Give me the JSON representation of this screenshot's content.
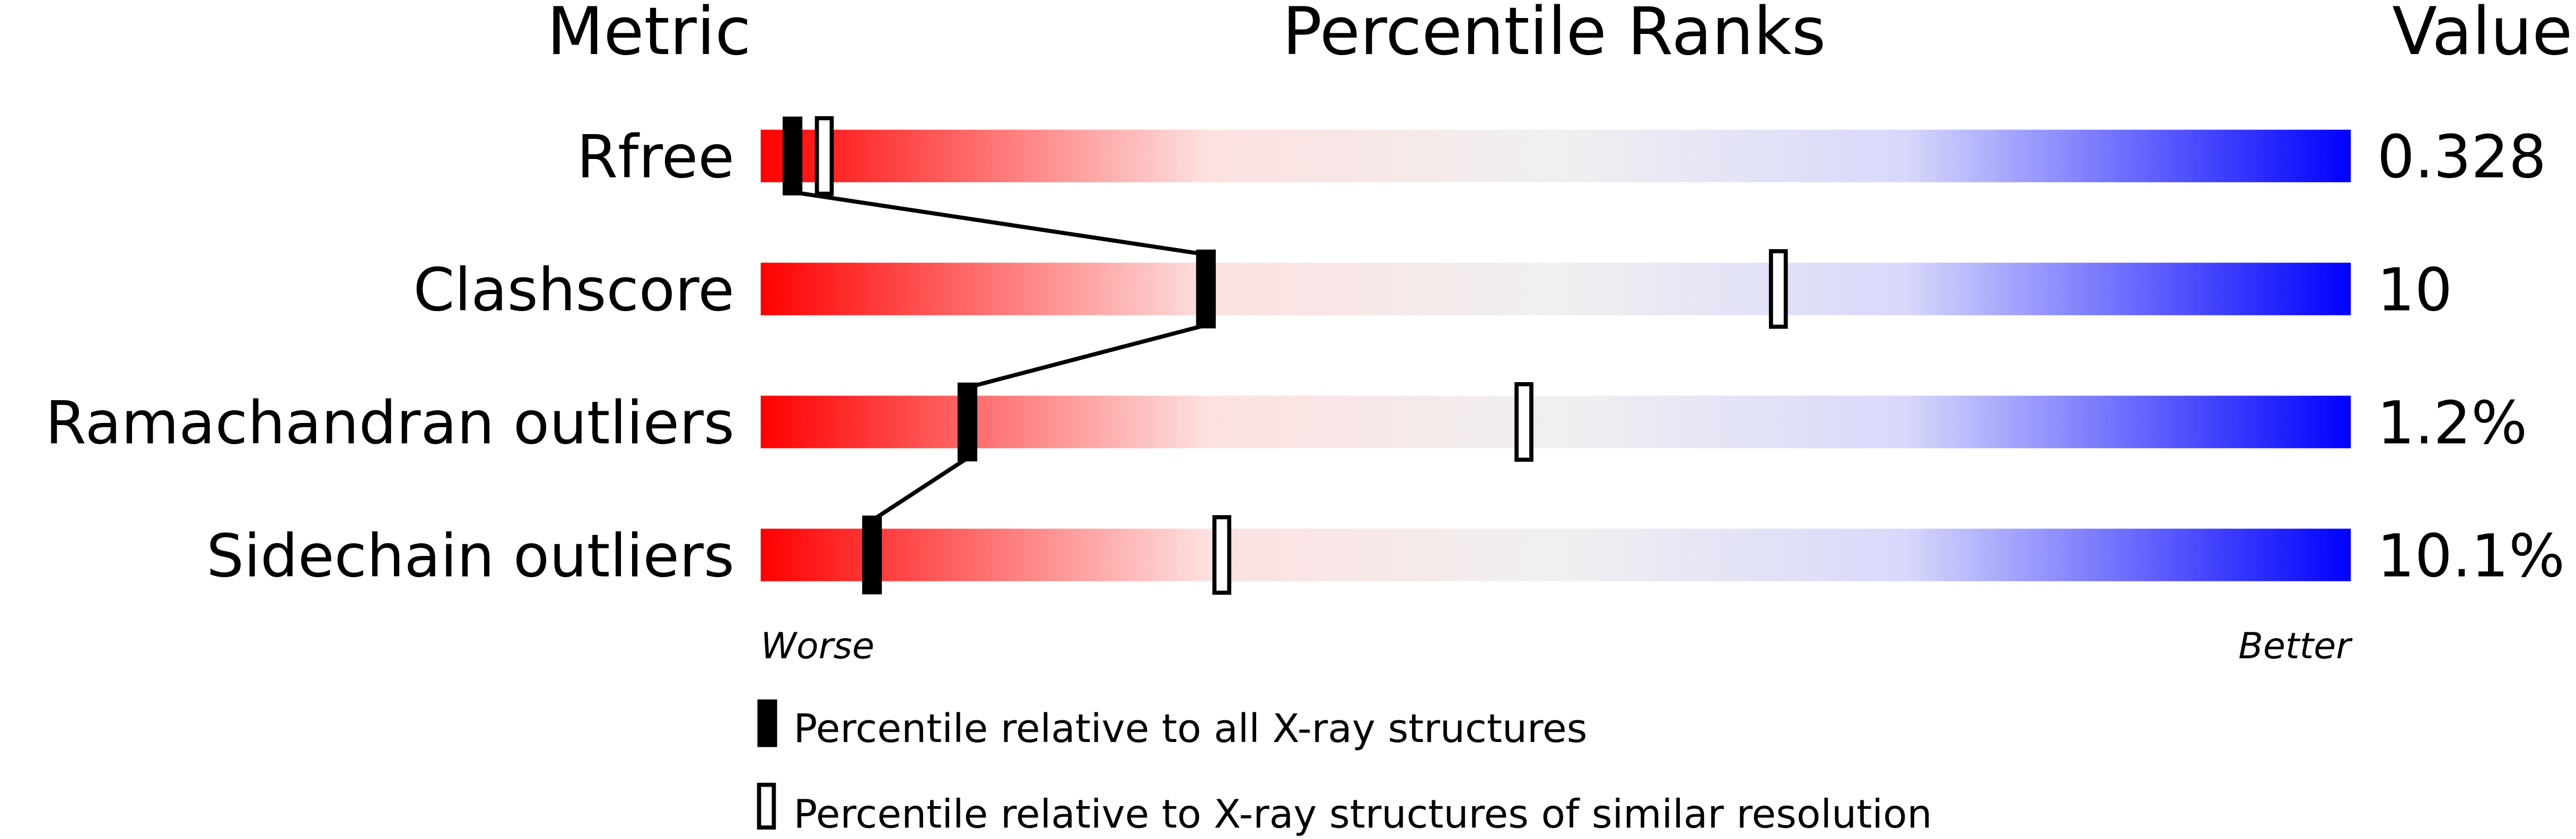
{
  "chart_data": {
    "type": "percentile-slider",
    "headers": {
      "metric": "Metric",
      "ranks": "Percentile Ranks",
      "value": "Value"
    },
    "xlim": [
      0,
      100
    ],
    "scale_ends": {
      "left": "Worse",
      "right": "Better"
    },
    "gradient_colors": [
      "#ff0000",
      "#fde0e0",
      "#f0f0f0",
      "#d8d8fc",
      "#0000ff"
    ],
    "rows": [
      {
        "metric": "Rfree",
        "value": "0.328",
        "percentile_all": 2,
        "percentile_similar": 4
      },
      {
        "metric": "Clashscore",
        "value": "10",
        "percentile_all": 28,
        "percentile_similar": 64
      },
      {
        "metric": "Ramachandran outliers",
        "value": "1.2%",
        "percentile_all": 13,
        "percentile_similar": 48
      },
      {
        "metric": "Sidechain outliers",
        "value": "10.1%",
        "percentile_all": 7,
        "percentile_similar": 29
      }
    ],
    "legend": [
      {
        "marker": "filled",
        "label": "Percentile relative to all X-ray structures"
      },
      {
        "marker": "hollow",
        "label": "Percentile relative to X-ray structures of similar resolution"
      }
    ]
  }
}
